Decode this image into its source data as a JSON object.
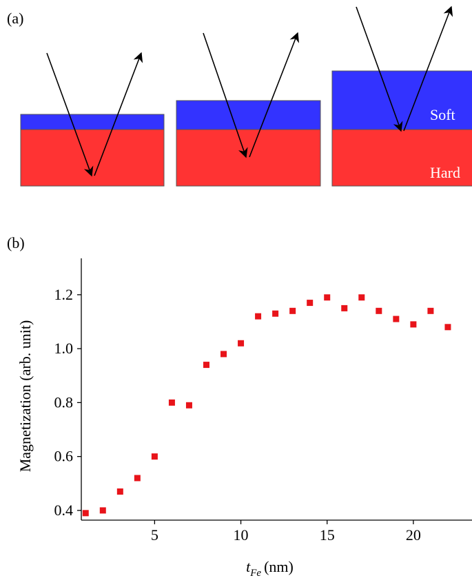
{
  "panel_a": {
    "label": "(a)",
    "soft_label": "Soft",
    "hard_label": "Hard"
  },
  "chart_data": {
    "type": "scatter",
    "panel_label": "(b)",
    "y_label": "Magnetization (arb. unit)",
    "x_label": {
      "symbol": "t",
      "subscript": "Fe",
      "unit": "(nm)"
    },
    "color": "#e8141a",
    "x": [
      1,
      2,
      3,
      4,
      5,
      6,
      7,
      8,
      9,
      10,
      11,
      12,
      13,
      14,
      15,
      16,
      17,
      18,
      19,
      20,
      21,
      22
    ],
    "values": [
      0.39,
      0.4,
      0.47,
      0.52,
      0.6,
      0.8,
      0.79,
      0.94,
      0.98,
      1.02,
      1.12,
      1.13,
      1.14,
      1.17,
      1.19,
      1.15,
      1.19,
      1.14,
      1.11,
      1.09,
      1.14,
      1.08
    ],
    "xlim": [
      0.75,
      23.4
    ],
    "ylim": [
      0.364,
      1.335
    ],
    "xticks": [
      5,
      10,
      15,
      20
    ],
    "yticks": [
      0.4,
      0.6,
      0.8,
      {
        "value": 1,
        "label": "1.0"
      },
      1.2
    ]
  }
}
